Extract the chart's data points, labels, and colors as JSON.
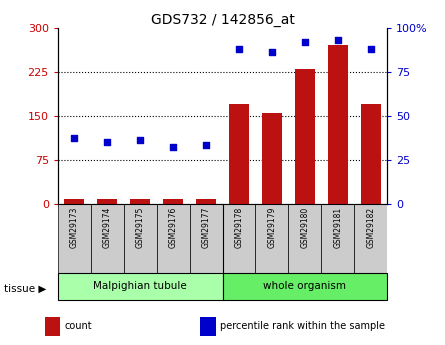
{
  "title": "GDS732 / 142856_at",
  "samples": [
    "GSM29173",
    "GSM29174",
    "GSM29175",
    "GSM29176",
    "GSM29177",
    "GSM29178",
    "GSM29179",
    "GSM29180",
    "GSM29181",
    "GSM29182"
  ],
  "counts": [
    8,
    8,
    7,
    8,
    7,
    170,
    155,
    230,
    270,
    170
  ],
  "percentile": [
    37,
    35,
    36,
    32,
    33,
    88,
    86,
    92,
    93,
    88
  ],
  "left_ylim": [
    0,
    300
  ],
  "right_ylim": [
    0,
    100
  ],
  "left_yticks": [
    0,
    75,
    150,
    225,
    300
  ],
  "right_yticks": [
    0,
    25,
    50,
    75,
    100
  ],
  "bar_color": "#BB1111",
  "dot_color": "#0000CC",
  "tissue_labels": [
    "Malpighian tubule",
    "whole organism"
  ],
  "tissue_group_sizes": [
    5,
    5
  ],
  "tissue_colors": [
    "#AAFFAA",
    "#66EE66"
  ],
  "tick_label_color_left": "#CC0000",
  "tick_label_color_right": "#0000CC",
  "sample_bg_color": "#CCCCCC",
  "legend_items": [
    "count",
    "percentile rank within the sample"
  ],
  "legend_colors": [
    "#BB1111",
    "#0000CC"
  ],
  "gridline_values": [
    75,
    150,
    225
  ]
}
